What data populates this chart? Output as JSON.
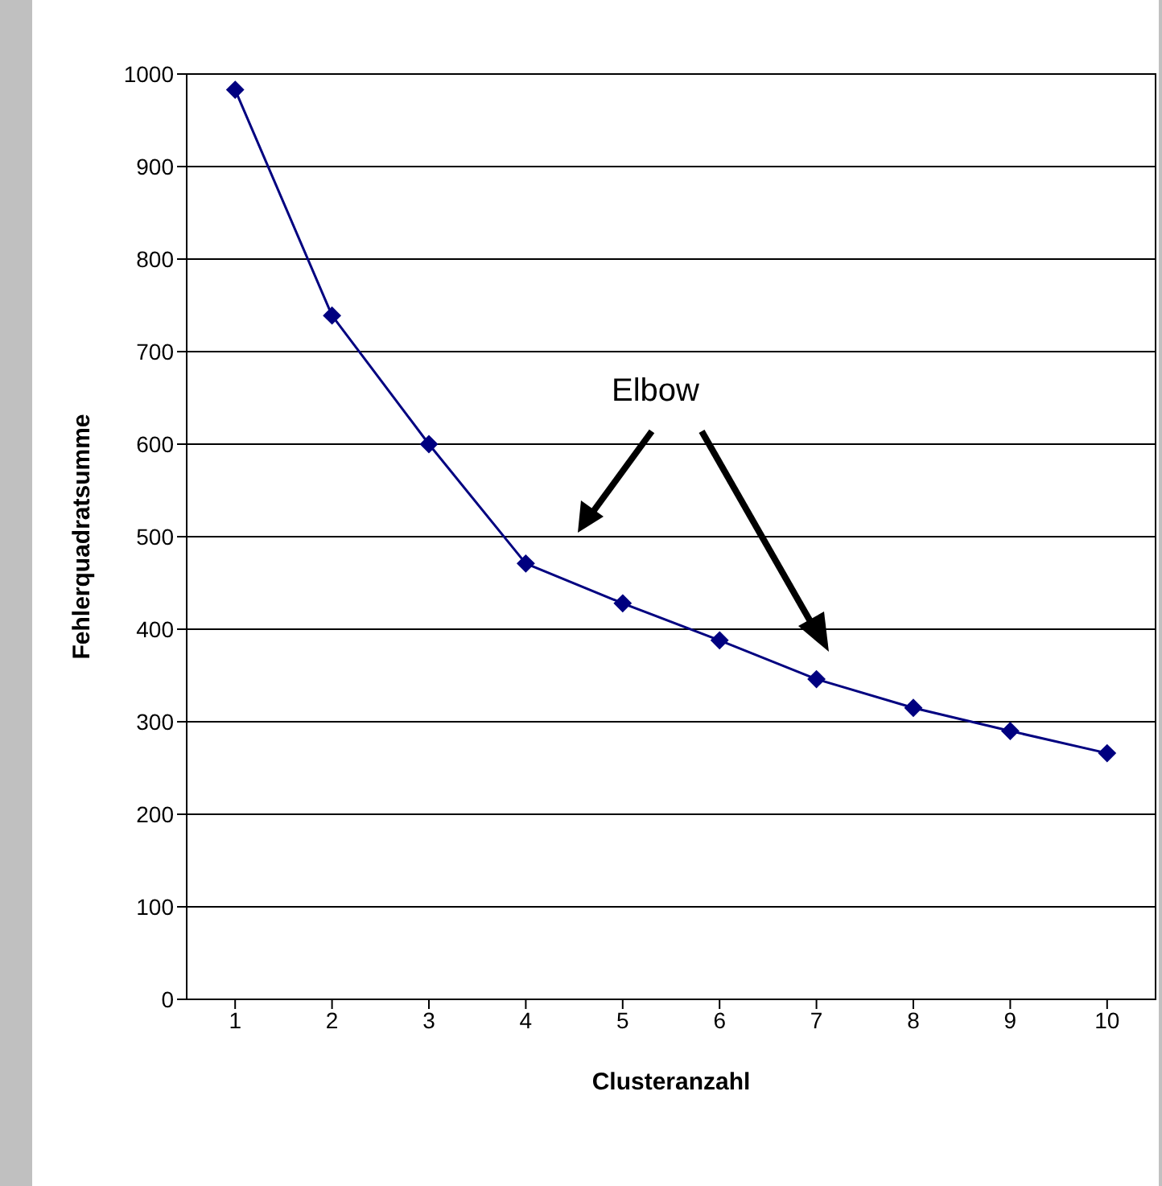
{
  "chart_data": {
    "type": "line",
    "xlabel": "Clusteranzahl",
    "ylabel": "Fehlerquadratsumme",
    "categories": [
      "1",
      "2",
      "3",
      "4",
      "5",
      "6",
      "7",
      "8",
      "9",
      "10"
    ],
    "series": [
      {
        "color": "#000080",
        "values": [
          983,
          739,
          600,
          471,
          428,
          388,
          346,
          315,
          290,
          266
        ]
      }
    ],
    "ylim": [
      0,
      1000
    ],
    "yticks": [
      0,
      100,
      200,
      300,
      400,
      500,
      600,
      700,
      800,
      900,
      1000
    ],
    "grid": "y",
    "marker": "diamond",
    "line_style": "solid",
    "annotations": [
      "Elbow"
    ]
  }
}
